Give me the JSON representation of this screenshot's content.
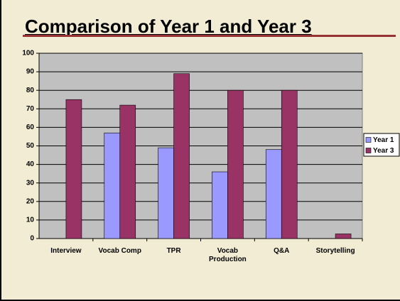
{
  "chart_data": {
    "type": "bar",
    "title": "Comparison of Year 1 and Year 3",
    "categories": [
      "Interview",
      "Vocab Comp",
      "TPR",
      "Vocab Production",
      "Q&A",
      "Storytelling"
    ],
    "series": [
      {
        "name": "Year 1",
        "color": "#9999ff",
        "values": [
          0,
          57,
          49,
          36,
          48,
          0
        ]
      },
      {
        "name": "Year 3",
        "color": "#993366",
        "values": [
          75,
          72,
          89,
          80,
          80,
          2.5
        ]
      }
    ],
    "ylim": [
      0,
      100
    ],
    "yticks": [
      0,
      10,
      20,
      30,
      40,
      50,
      60,
      70,
      80,
      90,
      100
    ],
    "grid": true,
    "legend": "right"
  }
}
